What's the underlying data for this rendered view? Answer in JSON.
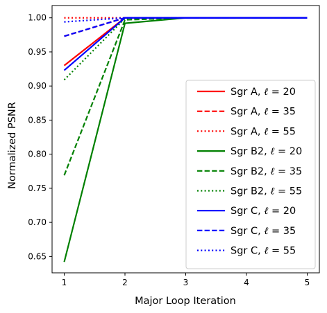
{
  "chart_data": {
    "type": "line",
    "title": "",
    "xlabel": "Major Loop Iteration",
    "ylabel": "Normalized PSNR",
    "x": [
      1,
      2,
      3,
      4,
      5
    ],
    "xticks": [
      "1",
      "2",
      "3",
      "4",
      "5"
    ],
    "yticks": [
      "0.65",
      "0.70",
      "0.75",
      "0.80",
      "0.85",
      "0.90",
      "0.95",
      "1.00"
    ],
    "xlim": [
      0.8,
      5.2
    ],
    "ylim": [
      0.626,
      1.018
    ],
    "grid": false,
    "legend_position": "lower-right",
    "series": [
      {
        "name": "Sgr A, ℓ = 20",
        "source": "Sgr A",
        "ell": "20",
        "color": "#ff0000",
        "style": "solid",
        "values": [
          0.93,
          1.0,
          1.0,
          1.0,
          1.0
        ]
      },
      {
        "name": "Sgr A, ℓ = 35",
        "source": "Sgr A",
        "ell": "35",
        "color": "#ff0000",
        "style": "dashed",
        "values": [
          0.973,
          1.0,
          1.0,
          1.0,
          1.0
        ]
      },
      {
        "name": "Sgr A, ℓ = 55",
        "source": "Sgr A",
        "ell": "55",
        "color": "#ff0000",
        "style": "dotted",
        "values": [
          1.0,
          1.0,
          1.0,
          1.0,
          1.0
        ]
      },
      {
        "name": "Sgr B2, ℓ = 20",
        "source": "Sgr B2",
        "ell": "20",
        "color": "#008000",
        "style": "solid",
        "values": [
          0.642,
          0.992,
          1.0,
          1.0,
          1.0
        ]
      },
      {
        "name": "Sgr B2, ℓ = 35",
        "source": "Sgr B2",
        "ell": "35",
        "color": "#008000",
        "style": "dashed",
        "values": [
          0.769,
          0.997,
          1.0,
          1.0,
          1.0
        ]
      },
      {
        "name": "Sgr B2, ℓ = 55",
        "source": "Sgr B2",
        "ell": "55",
        "color": "#008000",
        "style": "dotted",
        "values": [
          0.909,
          0.999,
          1.0,
          1.0,
          1.0
        ]
      },
      {
        "name": "Sgr C, ℓ = 20",
        "source": "Sgr C",
        "ell": "20",
        "color": "#0000ff",
        "style": "solid",
        "values": [
          0.923,
          1.0,
          1.0,
          1.0,
          1.0
        ]
      },
      {
        "name": "Sgr C, ℓ = 35",
        "source": "Sgr C",
        "ell": "35",
        "color": "#0000ff",
        "style": "dashed",
        "values": [
          0.973,
          1.0,
          1.0,
          1.0,
          1.0
        ]
      },
      {
        "name": "Sgr C, ℓ = 55",
        "source": "Sgr C",
        "ell": "55",
        "color": "#0000ff",
        "style": "dotted",
        "values": [
          0.994,
          1.0,
          1.0,
          1.0,
          1.0
        ]
      }
    ]
  }
}
